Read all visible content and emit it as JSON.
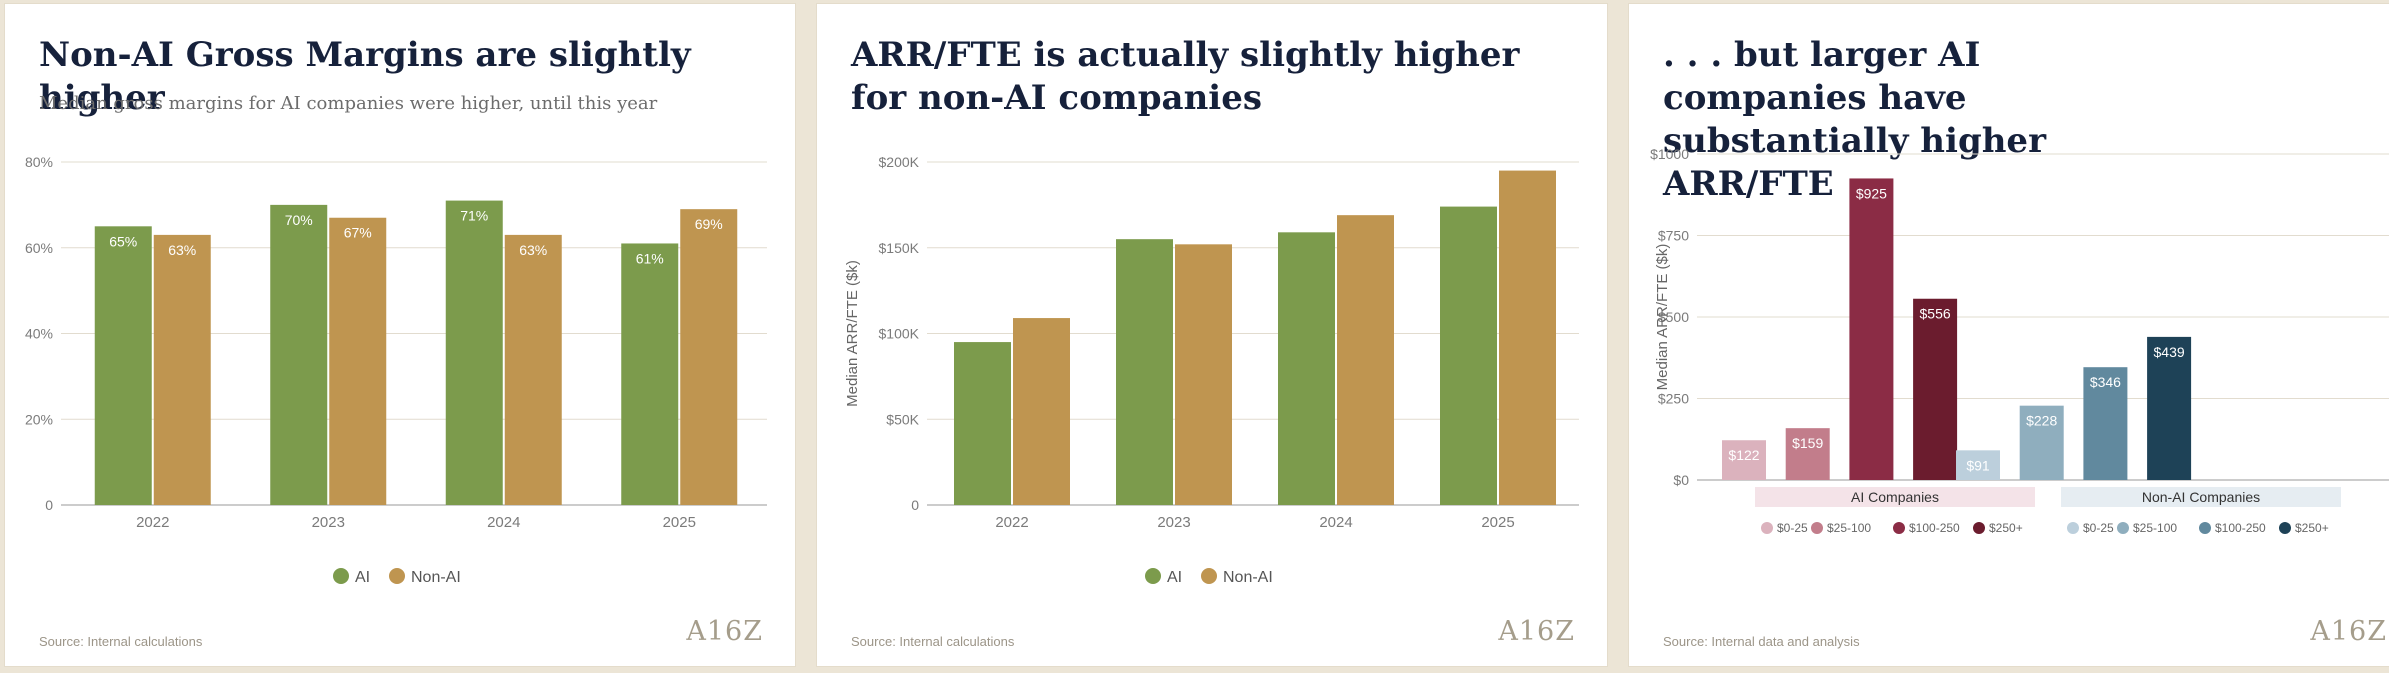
{
  "colors": {
    "ai": "#7c9b4c",
    "non_ai": "#bf9550",
    "ai_size": [
      "#dbb2bd",
      "#c27d8b",
      "#8b2c45",
      "#6b1c2e"
    ],
    "non_ai_size": [
      "#bccfdc",
      "#8faebe",
      "#61899e",
      "#1e4257"
    ],
    "grid": "#e2dccf",
    "axis_text": "#7b7b7b",
    "label": "#444444"
  },
  "panels": [
    {
      "title": "Non-AI Gross Margins are slightly higher",
      "subtitle": "Median gross margins for AI companies were higher, until this year",
      "source": "Source: Internal calculations",
      "logo": "A16Z"
    },
    {
      "title": "ARR/FTE is actually slightly higher for non-AI companies",
      "source": "Source: Internal calculations",
      "logo": "A16Z"
    },
    {
      "title": ". . . but larger AI companies have substantially higher ARR/FTE",
      "source": "Source: Internal data and analysis",
      "logo": "A16Z"
    }
  ],
  "chart_data": [
    {
      "type": "bar",
      "title": "Non-AI Gross Margins are slightly higher",
      "subtitle": "Median gross margins for AI companies were higher, until this year",
      "categories": [
        "2022",
        "2023",
        "2024",
        "2025"
      ],
      "series": [
        {
          "name": "AI",
          "values": [
            65,
            70,
            71,
            61
          ],
          "labels": [
            "65%",
            "70%",
            "71%",
            "61%"
          ]
        },
        {
          "name": "Non-AI",
          "values": [
            63,
            67,
            63,
            69
          ],
          "labels": [
            "63%",
            "67%",
            "63%",
            "69%"
          ]
        }
      ],
      "ylim": [
        0,
        80
      ],
      "yticks": [
        0,
        20,
        40,
        60,
        80
      ],
      "ytick_labels": [
        "0",
        "20%",
        "40%",
        "60%",
        "80%"
      ],
      "xlabel": "",
      "ylabel": "",
      "legend": "bottom-center",
      "grid": true
    },
    {
      "type": "bar",
      "title": "ARR/FTE is actually slightly higher for non-AI companies",
      "categories": [
        "2022",
        "2023",
        "2024",
        "2025"
      ],
      "series": [
        {
          "name": "AI",
          "values": [
            95,
            155,
            159,
            174
          ]
        },
        {
          "name": "Non-AI",
          "values": [
            109,
            152,
            169,
            195
          ]
        }
      ],
      "ylim": [
        0,
        200
      ],
      "yticks": [
        0,
        50,
        100,
        150,
        200
      ],
      "ytick_labels": [
        "0",
        "$50K",
        "$100K",
        "$150K",
        "$200K"
      ],
      "xlabel": "",
      "ylabel": "Median ARR/FTE ($k)",
      "legend": "bottom-center",
      "grid": true
    },
    {
      "type": "bar",
      "title": ". . . but larger AI companies have substantially higher ARR/FTE",
      "groups": [
        {
          "name": "AI Companies",
          "categories": [
            "$0-25",
            "$25-100",
            "$100-250",
            "$250+"
          ],
          "values": [
            122,
            159,
            925,
            556
          ],
          "labels": [
            "$122",
            "$159",
            "$925",
            "$556"
          ]
        },
        {
          "name": "Non-AI Companies",
          "categories": [
            "$0-25",
            "$25-100",
            "$100-250",
            "$250+"
          ],
          "values": [
            91,
            228,
            346,
            439
          ],
          "labels": [
            "$91",
            "$228",
            "$346",
            "$439"
          ]
        }
      ],
      "ylim": [
        0,
        1000
      ],
      "yticks": [
        0,
        250,
        500,
        750,
        1000
      ],
      "ytick_labels": [
        "$0",
        "$250",
        "$500",
        "$750",
        "$1000"
      ],
      "xlabel": "",
      "ylabel": "Median ARR/FTE ($k)",
      "legend": "bottom",
      "grid": true
    }
  ]
}
